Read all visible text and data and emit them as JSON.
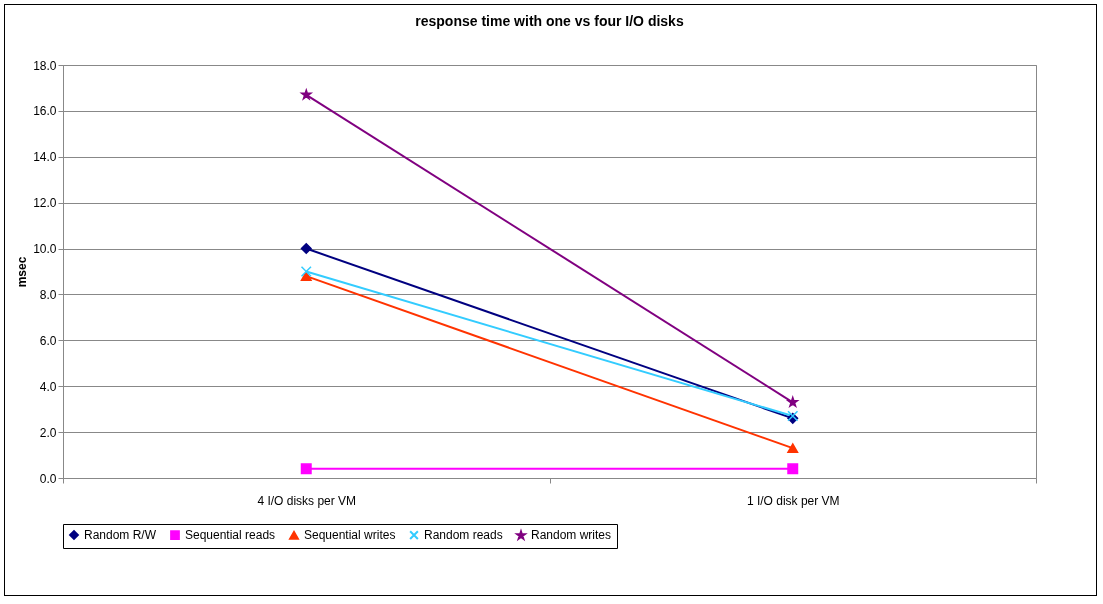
{
  "chart_data": {
    "type": "line",
    "title": "response time with one vs four I/O disks",
    "ylabel": "msec",
    "categories": [
      "4 I/O disks per VM",
      "1 I/O disk per VM"
    ],
    "series": [
      {
        "name": "Random R/W",
        "color": "#000080",
        "marker": "diamond",
        "values": [
          10.0,
          2.6
        ]
      },
      {
        "name": "Sequential reads",
        "color": "#ff00ff",
        "marker": "square",
        "values": [
          0.4,
          0.4
        ]
      },
      {
        "name": "Sequential writes",
        "color": "#ff3300",
        "marker": "triangle",
        "values": [
          8.8,
          1.3
        ]
      },
      {
        "name": "Random reads",
        "color": "#33ccff",
        "marker": "cross",
        "values": [
          9.0,
          2.7
        ]
      },
      {
        "name": "Random writes",
        "color": "#800080",
        "marker": "star",
        "values": [
          16.7,
          3.3
        ]
      }
    ],
    "ylim": [
      0,
      18
    ],
    "yticks": [
      {
        "value": 0,
        "label": "0.0"
      },
      {
        "value": 2,
        "label": "2.0"
      },
      {
        "value": 4,
        "label": "4.0"
      },
      {
        "value": 6,
        "label": "6.0"
      },
      {
        "value": 8,
        "label": "8.0"
      },
      {
        "value": 10,
        "label": "10.0"
      },
      {
        "value": 12,
        "label": "12.0"
      },
      {
        "value": 14,
        "label": "14.0"
      },
      {
        "value": 16,
        "label": "16.0"
      },
      {
        "value": 18,
        "label": "18.0"
      }
    ],
    "grid": "y",
    "legend": "bottom"
  }
}
